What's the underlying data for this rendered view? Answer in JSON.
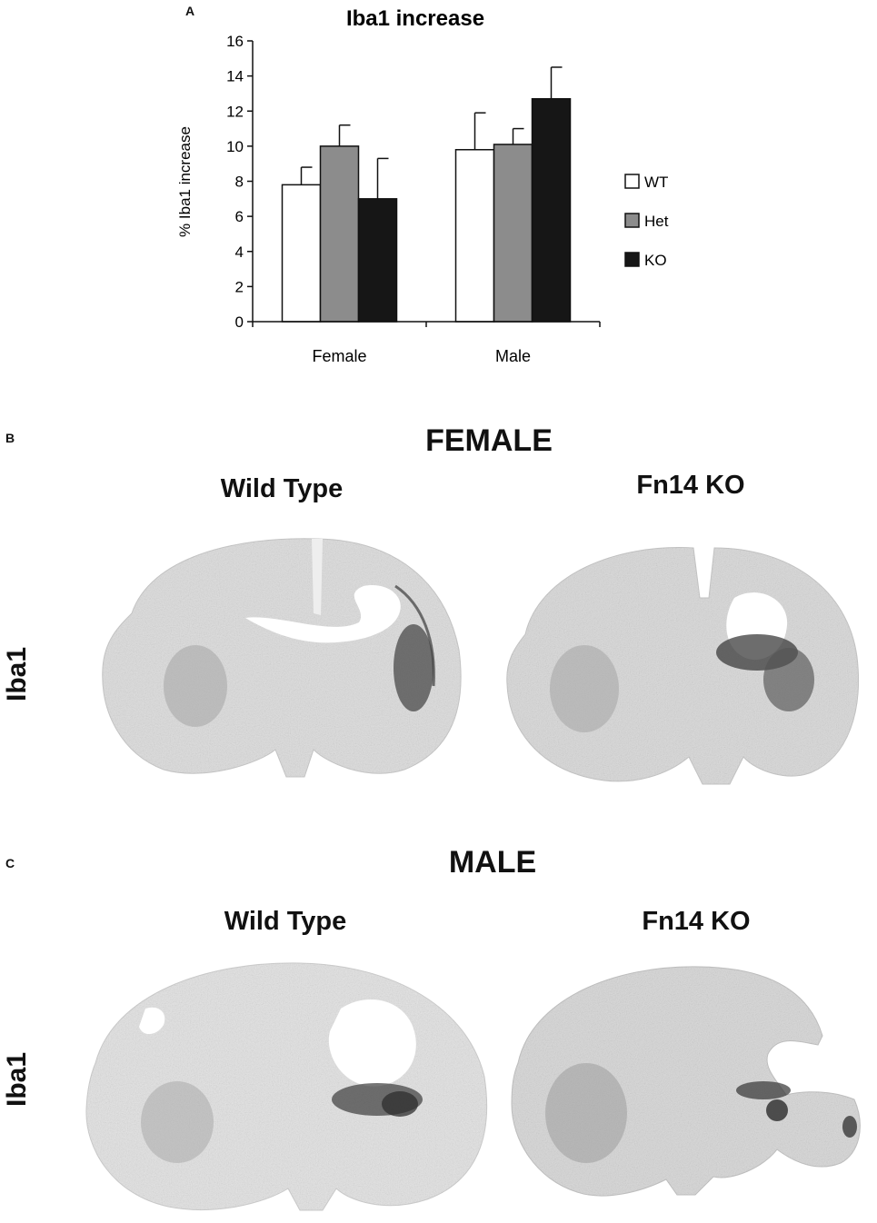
{
  "panels": {
    "a_letter": "A",
    "b_letter": "B",
    "c_letter": "C"
  },
  "chart_data": {
    "type": "bar",
    "title": "Iba1 increase",
    "xlabel": "",
    "ylabel": "% Iba1 increase",
    "ylim": [
      0,
      16
    ],
    "yticks": [
      0,
      2,
      4,
      6,
      8,
      10,
      12,
      14,
      16
    ],
    "categories": [
      "Female",
      "Male"
    ],
    "series": [
      {
        "name": "WT",
        "values": [
          7.8,
          9.8
        ],
        "errors": [
          1.0,
          2.1
        ],
        "color": "#ffffff"
      },
      {
        "name": "Het",
        "values": [
          10.0,
          10.1
        ],
        "errors": [
          1.2,
          0.9
        ],
        "color": "#8c8c8c"
      },
      {
        "name": "KO",
        "values": [
          7.0,
          12.7
        ],
        "errors": [
          2.3,
          1.8
        ],
        "color": "#161616"
      }
    ],
    "legend": "right",
    "grid": false
  },
  "images": {
    "female_title": "FEMALE",
    "male_title": "MALE",
    "wild_type_label": "Wild Type",
    "fn14_ko_label": "Fn14 KO",
    "row_label": "Iba1"
  }
}
